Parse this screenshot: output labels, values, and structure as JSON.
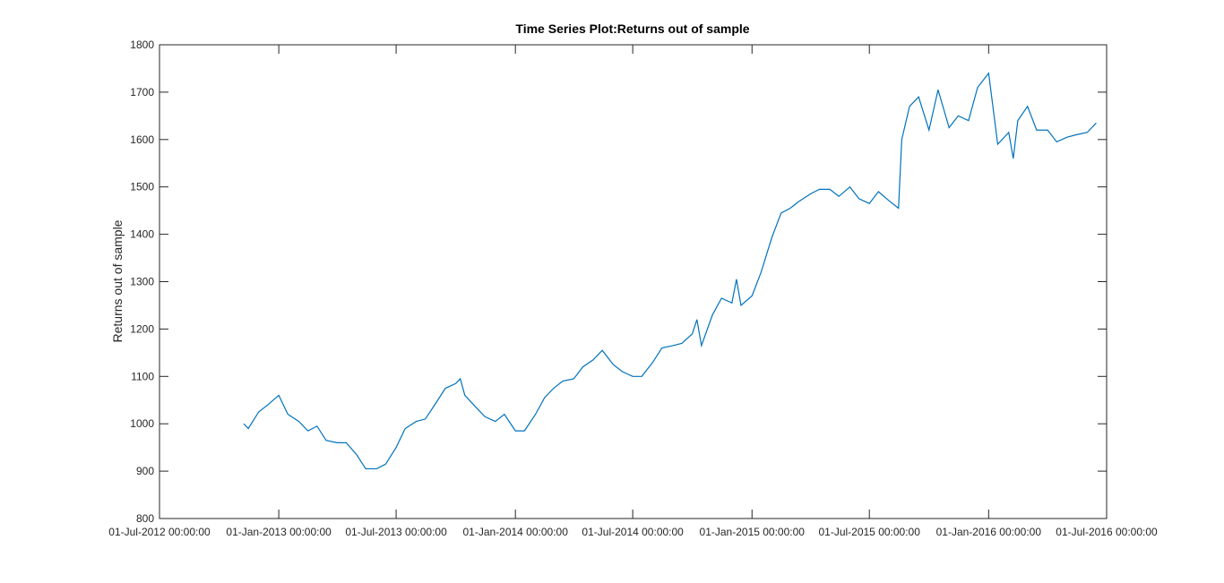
{
  "chart_data": {
    "type": "line",
    "title": "Time Series Plot:Returns out of sample",
    "y_label": "Returns out of sample",
    "x": [
      "2012-11-08",
      "2012-11-15",
      "2012-12-01",
      "2012-12-15",
      "2013-01-01",
      "2013-01-15",
      "2013-02-01",
      "2013-02-15",
      "2013-03-01",
      "2013-03-15",
      "2013-04-01",
      "2013-04-15",
      "2013-05-01",
      "2013-05-15",
      "2013-06-01",
      "2013-06-15",
      "2013-07-01",
      "2013-07-15",
      "2013-08-01",
      "2013-08-15",
      "2013-09-01",
      "2013-09-15",
      "2013-10-01",
      "2013-10-08",
      "2013-10-15",
      "2013-11-01",
      "2013-11-15",
      "2013-12-01",
      "2013-12-15",
      "2014-01-01",
      "2014-01-15",
      "2014-02-01",
      "2014-02-15",
      "2014-03-01",
      "2014-03-15",
      "2014-04-01",
      "2014-04-15",
      "2014-05-01",
      "2014-05-15",
      "2014-06-01",
      "2014-06-15",
      "2014-07-01",
      "2014-07-15",
      "2014-08-01",
      "2014-08-15",
      "2014-09-01",
      "2014-09-15",
      "2014-10-01",
      "2014-10-08",
      "2014-10-15",
      "2014-11-01",
      "2014-11-15",
      "2014-12-01",
      "2014-12-08",
      "2014-12-15",
      "2015-01-01",
      "2015-01-15",
      "2015-02-01",
      "2015-02-15",
      "2015-03-01",
      "2015-03-15",
      "2015-04-01",
      "2015-04-15",
      "2015-05-01",
      "2015-05-15",
      "2015-06-01",
      "2015-06-15",
      "2015-07-01",
      "2015-07-15",
      "2015-08-01",
      "2015-08-15",
      "2015-08-20",
      "2015-09-01",
      "2015-09-15",
      "2015-10-01",
      "2015-10-15",
      "2015-11-01",
      "2015-11-15",
      "2015-12-01",
      "2015-12-15",
      "2016-01-01",
      "2016-01-15",
      "2016-02-01",
      "2016-02-08",
      "2016-02-15",
      "2016-03-01",
      "2016-03-15",
      "2016-04-01",
      "2016-04-15",
      "2016-05-01",
      "2016-05-15",
      "2016-06-01",
      "2016-06-15"
    ],
    "series": [
      {
        "name": "Returns out of sample",
        "color": "#0072bd",
        "values": [
          1000,
          990,
          1025,
          1040,
          1060,
          1020,
          1005,
          985,
          995,
          965,
          960,
          960,
          935,
          905,
          905,
          915,
          950,
          990,
          1005,
          1010,
          1045,
          1075,
          1085,
          1095,
          1060,
          1035,
          1015,
          1005,
          1020,
          985,
          985,
          1020,
          1055,
          1075,
          1090,
          1095,
          1120,
          1135,
          1155,
          1125,
          1110,
          1100,
          1100,
          1130,
          1160,
          1165,
          1170,
          1190,
          1220,
          1165,
          1230,
          1265,
          1255,
          1305,
          1250,
          1270,
          1320,
          1395,
          1445,
          1455,
          1470,
          1485,
          1495,
          1495,
          1480,
          1500,
          1475,
          1465,
          1490,
          1470,
          1455,
          1600,
          1670,
          1690,
          1620,
          1705,
          1625,
          1650,
          1640,
          1710,
          1740,
          1590,
          1615,
          1560,
          1640,
          1670,
          1620,
          1620,
          1595,
          1605,
          1610,
          1615,
          1635
        ]
      }
    ],
    "xlim": [
      "2012-07-01",
      "2016-07-01"
    ],
    "xticks": [
      {
        "value": "2012-07-01",
        "label": "01-Jul-2012 00:00:00"
      },
      {
        "value": "2013-01-01",
        "label": "01-Jan-2013 00:00:00"
      },
      {
        "value": "2013-07-01",
        "label": "01-Jul-2013 00:00:00"
      },
      {
        "value": "2014-01-01",
        "label": "01-Jan-2014 00:00:00"
      },
      {
        "value": "2014-07-01",
        "label": "01-Jul-2014 00:00:00"
      },
      {
        "value": "2015-01-01",
        "label": "01-Jan-2015 00:00:00"
      },
      {
        "value": "2015-07-01",
        "label": "01-Jul-2015 00:00:00"
      },
      {
        "value": "2016-01-01",
        "label": "01-Jan-2016 00:00:00"
      },
      {
        "value": "2016-07-01",
        "label": "01-Jul-2016 00:00:00"
      }
    ],
    "ylim": [
      800,
      1800
    ],
    "yticks": [
      800,
      900,
      1000,
      1100,
      1200,
      1300,
      1400,
      1500,
      1600,
      1700,
      1800
    ],
    "grid": false
  }
}
